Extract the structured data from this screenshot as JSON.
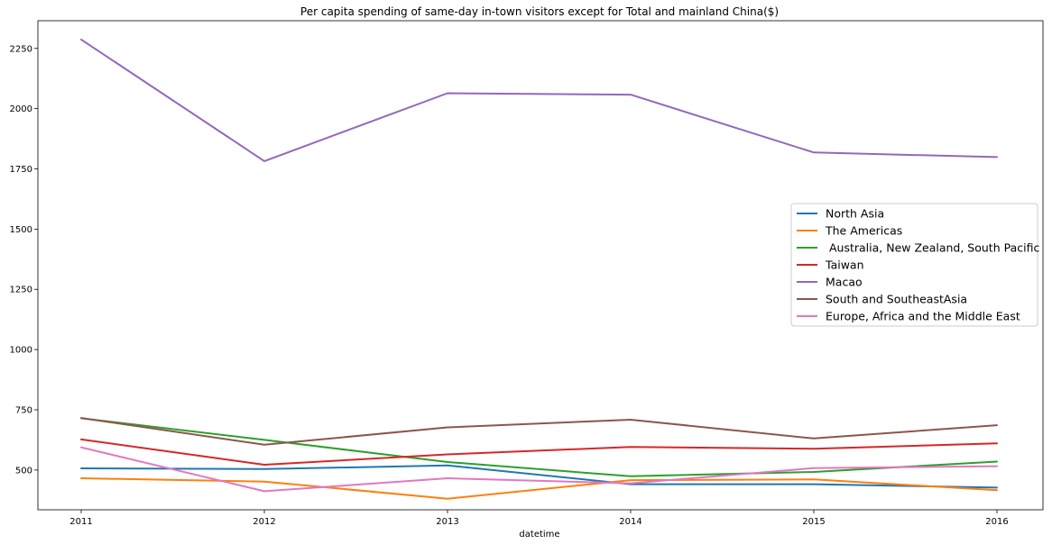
{
  "chart_data": {
    "type": "line",
    "title": "Per capita spending of same-day in-town visitors except for Total and mainland China($)",
    "xlabel": "datetime",
    "ylabel": "",
    "categories": [
      "2011",
      "2012",
      "2013",
      "2014",
      "2015",
      "2016"
    ],
    "ylim": [
      335,
      2365
    ],
    "yticks": [
      500,
      750,
      1000,
      1250,
      1500,
      1750,
      2000,
      2250
    ],
    "grid": false,
    "legend_position": "center-right",
    "series": [
      {
        "name": "North Asia",
        "color": "#1f77b4",
        "values": [
          507,
          504,
          519,
          441,
          441,
          427
        ]
      },
      {
        "name": "The Americas",
        "color": "#ff7f0e",
        "values": [
          466,
          452,
          381,
          458,
          461,
          416
        ]
      },
      {
        "name": " Australia, New Zealand, South Pacific",
        "color": "#2ca02c",
        "values": [
          715,
          625,
          533,
          474,
          492,
          535
        ]
      },
      {
        "name": "Taiwan",
        "color": "#d62728",
        "values": [
          627,
          522,
          565,
          596,
          588,
          611
        ]
      },
      {
        "name": "Macao",
        "color": "#9467bd",
        "values": [
          2287,
          1782,
          2064,
          2058,
          1818,
          1799
        ]
      },
      {
        "name": "South and SoutheastAsia",
        "color": "#8c564b",
        "values": [
          716,
          605,
          677,
          709,
          631,
          686
        ]
      },
      {
        "name": "Europe, Africa and the Middle East",
        "color": "#e377c2",
        "values": [
          594,
          412,
          466,
          445,
          508,
          516
        ]
      }
    ]
  }
}
